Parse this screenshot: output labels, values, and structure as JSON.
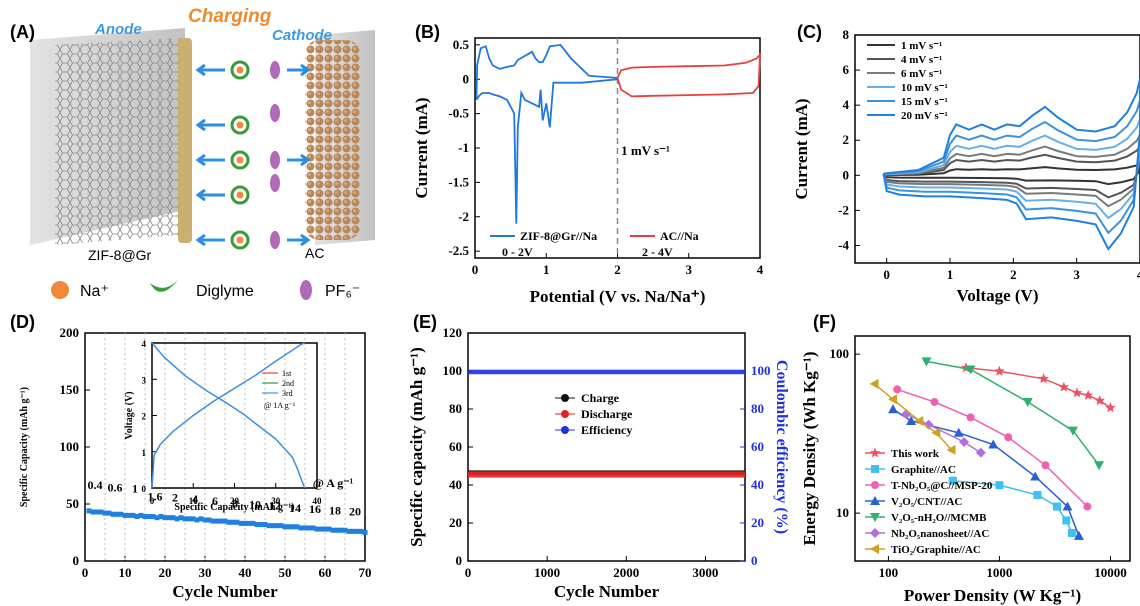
{
  "labels": {
    "A": "(A)",
    "B": "(B)",
    "C": "(C)",
    "D": "(D)",
    "E": "(E)",
    "F": "(F)"
  },
  "schematic": {
    "anode": "Anode",
    "charging": "Charging",
    "cathode": "Cathode",
    "anode_material": "ZIF-8@Gr",
    "cathode_material": "AC",
    "legend": [
      {
        "label": "Na⁺",
        "color": "#f08a3a"
      },
      {
        "label": "Diglyme",
        "color": "#3a9a3a"
      },
      {
        "label": "PF₆⁻",
        "color": "#b06ab8"
      }
    ],
    "colors": {
      "anode": "#3b9ae1",
      "charging": "#ed8b2e",
      "arrow": "#2f8ee0"
    }
  },
  "chart_data": [
    {
      "id": "B",
      "type": "line",
      "xlabel": "Potential (V vs. Na/Na⁺)",
      "ylabel": "Current (mA)",
      "xlim": [
        0,
        4
      ],
      "ylim": [
        -2.6,
        0.6
      ],
      "xticks": [
        0,
        1,
        2,
        3,
        4
      ],
      "yticks": [
        -2.5,
        -2.0,
        -1.5,
        -1.0,
        -0.5,
        0.0,
        0.5
      ],
      "annotation": "1 mV s⁻¹",
      "divider_x": 2,
      "series": [
        {
          "name": "ZIF-8@Gr//Na",
          "range": "0 - 2V",
          "color": "#1f77e0",
          "x": [
            0.02,
            0.05,
            0.1,
            0.15,
            0.2,
            0.25,
            0.35,
            0.45,
            0.55,
            0.58,
            0.6,
            0.62,
            0.65,
            0.7,
            0.8,
            0.9,
            0.92,
            0.95,
            1.0,
            1.05,
            1.1,
            1.5,
            2.0,
            2.0,
            1.6,
            1.35,
            1.2,
            1.05,
            1.0,
            0.95,
            0.9,
            0.85,
            0.8,
            0.6,
            0.55,
            0.45,
            0.35,
            0.25,
            0.2,
            0.15,
            0.08,
            0.03,
            0.02
          ],
          "y": [
            -0.3,
            -0.25,
            -0.2,
            -0.2,
            -0.2,
            -0.22,
            -0.25,
            -0.3,
            -0.5,
            -2.1,
            -0.7,
            -0.5,
            -0.2,
            -0.3,
            -0.35,
            -0.4,
            -0.15,
            -0.6,
            -0.35,
            -0.7,
            -0.05,
            -0.05,
            0.0,
            0.02,
            0.05,
            0.3,
            0.5,
            0.48,
            0.35,
            0.25,
            0.25,
            0.3,
            0.4,
            0.28,
            0.2,
            0.18,
            0.15,
            0.2,
            0.3,
            0.48,
            0.45,
            0.2,
            -0.3
          ]
        },
        {
          "name": "AC//Na",
          "range": "2 - 4V",
          "color": "#e84040",
          "x": [
            2.0,
            2.05,
            2.2,
            2.5,
            3.0,
            3.5,
            3.8,
            3.95,
            4.0,
            3.98,
            3.9,
            3.5,
            3.0,
            2.5,
            2.2,
            2.05,
            2.0
          ],
          "y": [
            0.02,
            0.13,
            0.17,
            0.18,
            0.19,
            0.2,
            0.24,
            0.3,
            0.36,
            -0.1,
            -0.2,
            -0.22,
            -0.23,
            -0.24,
            -0.25,
            -0.15,
            0.02
          ]
        }
      ]
    },
    {
      "id": "C",
      "type": "line",
      "xlabel": "Voltage (V)",
      "ylabel": "Current (mA)",
      "xlim": [
        -0.5,
        4
      ],
      "ylim": [
        -5,
        8
      ],
      "xticks": [
        0,
        1,
        2,
        3,
        4
      ],
      "yticks": [
        -4,
        -2,
        0,
        2,
        4,
        6,
        8
      ],
      "series": [
        {
          "name": "1 mV s⁻¹",
          "color": "#333333",
          "scale": 0.12
        },
        {
          "name": "4 mV s⁻¹",
          "color": "#555555",
          "scale": 0.3
        },
        {
          "name": "6 mV s⁻¹",
          "color": "#7a7a7a",
          "scale": 0.42
        },
        {
          "name": "10 mV s⁻¹",
          "color": "#6aaee8",
          "scale": 0.58
        },
        {
          "name": "15 mV s⁻¹",
          "color": "#3a92e0",
          "scale": 0.78
        },
        {
          "name": "20 mV s⁻¹",
          "color": "#1f80e0",
          "scale": 1.0
        }
      ],
      "envelope_upper": {
        "x": [
          -0.05,
          0.5,
          0.9,
          1.0,
          1.1,
          1.3,
          1.5,
          1.7,
          1.9,
          2.1,
          2.3,
          2.5,
          2.7,
          3.0,
          3.3,
          3.6,
          3.8,
          3.95,
          4.0
        ],
        "y": [
          0.1,
          0.3,
          1.0,
          2.3,
          2.9,
          2.6,
          2.9,
          2.6,
          2.9,
          2.8,
          3.4,
          3.9,
          3.3,
          2.6,
          2.5,
          2.8,
          3.6,
          4.7,
          5.5
        ]
      },
      "envelope_lower": {
        "x": [
          4.0,
          3.9,
          3.7,
          3.5,
          3.3,
          3.0,
          2.6,
          2.2,
          2.05,
          1.9,
          1.5,
          1.0,
          0.6,
          0.2,
          0.0,
          -0.05
        ],
        "y": [
          2.5,
          -1.8,
          -3.3,
          -4.2,
          -2.8,
          -2.6,
          -2.4,
          -2.5,
          -1.6,
          -1.4,
          -1.3,
          -1.2,
          -1.2,
          -1.1,
          -0.9,
          0.1
        ]
      }
    },
    {
      "id": "D",
      "type": "scatter",
      "xlabel": "Cycle Number",
      "ylabel": "Specific Capacity (mAh g⁻¹)",
      "xlim": [
        0,
        70
      ],
      "ylim": [
        0,
        200
      ],
      "xticks": [
        0,
        10,
        20,
        30,
        40,
        50,
        60,
        70
      ],
      "yticks": [
        0,
        50,
        100,
        150,
        200
      ],
      "color": "#1f80e0",
      "rate_labels": [
        "0.4",
        "0.6",
        "1",
        "1.6",
        "2",
        "4",
        "6",
        "8",
        "10",
        "12",
        "14",
        "16",
        "18",
        "20"
      ],
      "rate_unit": "@ A g⁻¹",
      "rate_boundaries": [
        5,
        10,
        15,
        20,
        25,
        30,
        35,
        40,
        45,
        50,
        55,
        60,
        65
      ],
      "x": [
        1,
        2,
        3,
        4,
        5,
        6,
        7,
        8,
        9,
        10,
        11,
        12,
        13,
        14,
        15,
        16,
        17,
        18,
        19,
        20,
        21,
        22,
        23,
        24,
        25,
        26,
        27,
        28,
        29,
        30,
        31,
        32,
        33,
        34,
        35,
        36,
        37,
        38,
        39,
        40,
        41,
        42,
        43,
        44,
        45,
        46,
        47,
        48,
        49,
        50,
        51,
        52,
        53,
        54,
        55,
        56,
        57,
        58,
        59,
        60,
        61,
        62,
        63,
        64,
        65,
        66,
        67,
        68,
        69,
        70
      ],
      "y": [
        44,
        43,
        43,
        43,
        42,
        42,
        41,
        41,
        41,
        40,
        40,
        40,
        39,
        40,
        39,
        39,
        39,
        38,
        39,
        38,
        38,
        38,
        37,
        38,
        37,
        37,
        37,
        36,
        37,
        36,
        36,
        35,
        35,
        35,
        35,
        34,
        34,
        34,
        33,
        33,
        33,
        33,
        32,
        32,
        32,
        31,
        31,
        31,
        31,
        30,
        30,
        30,
        30,
        29,
        29,
        29,
        29,
        28,
        28,
        28,
        28,
        27,
        27,
        27,
        27,
        26,
        26,
        26,
        26,
        25
      ],
      "inset": {
        "xlabel": "Specific Capacity (mAh g⁻¹)",
        "ylabel": "Voltage (V)",
        "xlim": [
          0,
          40
        ],
        "ylim": [
          0,
          4
        ],
        "xticks": [
          0,
          10,
          20,
          30,
          40
        ],
        "yticks": [
          0,
          1,
          2,
          3,
          4
        ],
        "legend": [
          {
            "name": "1st",
            "color": "#e84040"
          },
          {
            "name": "2nd",
            "color": "#2a9a3a"
          },
          {
            "name": "3rd",
            "color": "#3a92e0"
          }
        ],
        "note": "@ 1A g⁻¹",
        "charge": {
          "x": [
            0,
            0.5,
            2,
            5,
            10,
            15,
            20,
            25,
            30,
            34,
            36,
            37
          ],
          "y": [
            0,
            0.9,
            1.2,
            1.55,
            2.0,
            2.4,
            2.75,
            3.1,
            3.5,
            3.8,
            3.95,
            4.0
          ]
        },
        "discharge": {
          "x": [
            0,
            3,
            8,
            13,
            18,
            22,
            26,
            30,
            32,
            34,
            35,
            36,
            37
          ],
          "y": [
            4.0,
            3.6,
            3.1,
            2.7,
            2.35,
            2.05,
            1.7,
            1.35,
            1.1,
            0.85,
            0.6,
            0.3,
            0.0
          ]
        }
      }
    },
    {
      "id": "E",
      "type": "scatter",
      "xlabel": "Cycle Number",
      "ylabel": "Specific capacity (mAh g⁻¹)",
      "y2label": "Coulombic efficiency (%)",
      "xlim": [
        0,
        3500
      ],
      "ylim": [
        0,
        120
      ],
      "y2lim": [
        0,
        120
      ],
      "xticks": [
        0,
        1000,
        2000,
        3000
      ],
      "yticks": [
        0,
        20,
        40,
        60,
        80,
        100,
        120
      ],
      "y2ticks": [
        0,
        20,
        40,
        60,
        80,
        100
      ],
      "series": [
        {
          "name": "Charge",
          "color": "#111111",
          "mean": 46.5,
          "spread": 1.2
        },
        {
          "name": "Discharge",
          "color": "#e82020",
          "mean": 45.5,
          "spread": 1.6
        },
        {
          "name": "Efficiency",
          "color": "#2030e0",
          "mean": 99.5,
          "spread": 1.2,
          "axis": "y2"
        }
      ]
    },
    {
      "id": "F",
      "type": "line",
      "xlabel": "Power Density (W Kg⁻¹)",
      "ylabel": "Energy Density (Wh Kg⁻¹)",
      "xscale": "log",
      "yscale": "log",
      "xlim": [
        50,
        15000
      ],
      "ylim": [
        5,
        130
      ],
      "xticks": [
        100,
        1000,
        10000
      ],
      "yticks": [
        10,
        100
      ],
      "series": [
        {
          "name": "This work",
          "color": "#f05060",
          "marker": "star",
          "x": [
            500,
            1000,
            2500,
            3800,
            5000,
            6300,
            8000,
            10000
          ],
          "y": [
            82,
            78,
            70,
            62,
            57,
            55,
            51,
            46
          ]
        },
        {
          "name": "Graphite//AC",
          "color": "#40c0f0",
          "marker": "square",
          "x": [
            380,
            1000,
            2200,
            3300,
            4000,
            4500
          ],
          "y": [
            16,
            15,
            13,
            11,
            9,
            7.5
          ]
        },
        {
          "name": "T-Nb₂O₅@C//MSP-20",
          "color": "#f060b0",
          "marker": "circle",
          "x": [
            120,
            260,
            550,
            1200,
            2600,
            6200
          ],
          "y": [
            60,
            50,
            40,
            30,
            20,
            11
          ]
        },
        {
          "name": "V₂O₅/CNT//AC",
          "color": "#2a60d0",
          "marker": "triangle",
          "x": [
            110,
            160,
            430,
            880,
            2100,
            4100,
            5200
          ],
          "y": [
            45,
            38,
            32,
            27,
            17,
            11,
            7.2
          ]
        },
        {
          "name": "V₂O₅-nH₂O//MCMB",
          "color": "#30b070",
          "marker": "triangle-down",
          "x": [
            220,
            550,
            1800,
            4600,
            7900
          ],
          "y": [
            90,
            80,
            50,
            33,
            20
          ]
        },
        {
          "name": "Nb₂O₅nanosheet//AC",
          "color": "#b070e0",
          "marker": "diamond",
          "x": [
            145,
            230,
            480,
            680
          ],
          "y": [
            42,
            36,
            28,
            24
          ]
        },
        {
          "name": "TiO₂/Graphite//AC",
          "color": "#d0a020",
          "marker": "triangle-left",
          "x": [
            75,
            110,
            190,
            270,
            370
          ],
          "y": [
            65,
            52,
            38,
            32,
            25
          ]
        }
      ]
    }
  ]
}
